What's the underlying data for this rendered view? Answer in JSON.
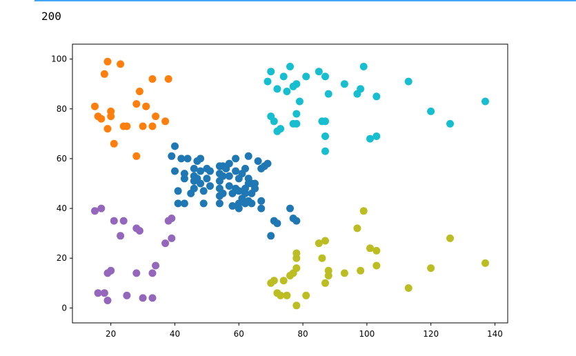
{
  "output": {
    "text": "200"
  },
  "chart_data": {
    "type": "scatter",
    "xlim": [
      8,
      144
    ],
    "ylim": [
      -6,
      106
    ],
    "xticks": [
      20,
      40,
      60,
      80,
      100,
      120,
      140
    ],
    "yticks": [
      0,
      20,
      40,
      60,
      80,
      100
    ],
    "grid": false,
    "clusters": [
      {
        "color": "#1f77b4",
        "points": [
          [
            39,
            61
          ],
          [
            40,
            65
          ],
          [
            40,
            55
          ],
          [
            41,
            47
          ],
          [
            42,
            60
          ],
          [
            43,
            52
          ],
          [
            43,
            54
          ],
          [
            44,
            60
          ],
          [
            45,
            46
          ],
          [
            46,
            48
          ],
          [
            46,
            51
          ],
          [
            46,
            56
          ],
          [
            46,
            53
          ],
          [
            47,
            59
          ],
          [
            47,
            52
          ],
          [
            48,
            60
          ],
          [
            48,
            55
          ],
          [
            48,
            50
          ],
          [
            49,
            47
          ],
          [
            49,
            42
          ],
          [
            50,
            56
          ],
          [
            50,
            52
          ],
          [
            51,
            49
          ],
          [
            51,
            55
          ],
          [
            54,
            57
          ],
          [
            54,
            51
          ],
          [
            54,
            54
          ],
          [
            54,
            48
          ],
          [
            54,
            45
          ],
          [
            54,
            42
          ],
          [
            55,
            57
          ],
          [
            55,
            53
          ],
          [
            55,
            46
          ],
          [
            56,
            56
          ],
          [
            57,
            58
          ],
          [
            57,
            53
          ],
          [
            57,
            49
          ],
          [
            58,
            46
          ],
          [
            58,
            41
          ],
          [
            59,
            55
          ],
          [
            59,
            48
          ],
          [
            59,
            60
          ],
          [
            60,
            52
          ],
          [
            60,
            42
          ],
          [
            60,
            47
          ],
          [
            60,
            40
          ],
          [
            61,
            54
          ],
          [
            61,
            44
          ],
          [
            62,
            56
          ],
          [
            62,
            48
          ],
          [
            62,
            46
          ],
          [
            62,
            42
          ],
          [
            63,
            52
          ],
          [
            63,
            50
          ],
          [
            63,
            61
          ],
          [
            63,
            43
          ],
          [
            64,
            46
          ],
          [
            64,
            50
          ],
          [
            64,
            42
          ],
          [
            65,
            48
          ],
          [
            65,
            50
          ],
          [
            66,
            59
          ],
          [
            67,
            56
          ],
          [
            68,
            57
          ],
          [
            69,
            58
          ],
          [
            67,
            43
          ],
          [
            67,
            40
          ],
          [
            71,
            35
          ],
          [
            72,
            34
          ],
          [
            76,
            40
          ],
          [
            77,
            36
          ],
          [
            78,
            35
          ],
          [
            70,
            29
          ],
          [
            41,
            42
          ],
          [
            43,
            42
          ]
        ]
      },
      {
        "color": "#ff7f0e",
        "points": [
          [
            15,
            81
          ],
          [
            16,
            77
          ],
          [
            17,
            76
          ],
          [
            18,
            94
          ],
          [
            19,
            99
          ],
          [
            19,
            72
          ],
          [
            20,
            79
          ],
          [
            20,
            77
          ],
          [
            21,
            66
          ],
          [
            23,
            98
          ],
          [
            24,
            73
          ],
          [
            25,
            73
          ],
          [
            28,
            61
          ],
          [
            28,
            82
          ],
          [
            29,
            87
          ],
          [
            30,
            73
          ],
          [
            31,
            81
          ],
          [
            33,
            92
          ],
          [
            33,
            73
          ],
          [
            34,
            77
          ],
          [
            37,
            75
          ],
          [
            38,
            92
          ]
        ]
      },
      {
        "color": "#17becf",
        "points": [
          [
            69,
            91
          ],
          [
            70,
            95
          ],
          [
            70,
            77
          ],
          [
            71,
            75
          ],
          [
            72,
            71
          ],
          [
            72,
            88
          ],
          [
            73,
            72
          ],
          [
            74,
            93
          ],
          [
            75,
            87
          ],
          [
            76,
            97
          ],
          [
            77,
            74
          ],
          [
            77,
            89
          ],
          [
            78,
            78
          ],
          [
            78,
            74
          ],
          [
            78,
            90
          ],
          [
            79,
            83
          ],
          [
            81,
            93
          ],
          [
            85,
            95
          ],
          [
            86,
            75
          ],
          [
            87,
            75
          ],
          [
            87,
            93
          ],
          [
            87,
            63
          ],
          [
            87,
            69
          ],
          [
            88,
            86
          ],
          [
            93,
            90
          ],
          [
            97,
            86
          ],
          [
            98,
            88
          ],
          [
            99,
            97
          ],
          [
            101,
            68
          ],
          [
            103,
            69
          ],
          [
            103,
            85
          ],
          [
            113,
            91
          ],
          [
            120,
            79
          ],
          [
            126,
            74
          ],
          [
            137,
            83
          ]
        ]
      },
      {
        "color": "#9467bd",
        "points": [
          [
            15,
            39
          ],
          [
            16,
            6
          ],
          [
            17,
            40
          ],
          [
            18,
            6
          ],
          [
            19,
            3
          ],
          [
            19,
            14
          ],
          [
            20,
            15
          ],
          [
            21,
            35
          ],
          [
            23,
            29
          ],
          [
            24,
            35
          ],
          [
            25,
            5
          ],
          [
            28,
            14
          ],
          [
            28,
            32
          ],
          [
            29,
            31
          ],
          [
            30,
            4
          ],
          [
            33,
            4
          ],
          [
            33,
            14
          ],
          [
            34,
            17
          ],
          [
            37,
            26
          ],
          [
            38,
            35
          ],
          [
            39,
            28
          ],
          [
            39,
            36
          ]
        ]
      },
      {
        "color": "#bcbd22",
        "points": [
          [
            70,
            10
          ],
          [
            71,
            11
          ],
          [
            72,
            6
          ],
          [
            73,
            5
          ],
          [
            74,
            11
          ],
          [
            75,
            5
          ],
          [
            76,
            13
          ],
          [
            77,
            14
          ],
          [
            78,
            20
          ],
          [
            78,
            16
          ],
          [
            78,
            22
          ],
          [
            78,
            1
          ],
          [
            81,
            5
          ],
          [
            85,
            26
          ],
          [
            86,
            20
          ],
          [
            87,
            10
          ],
          [
            87,
            27
          ],
          [
            88,
            13
          ],
          [
            88,
            15
          ],
          [
            93,
            14
          ],
          [
            97,
            32
          ],
          [
            98,
            15
          ],
          [
            99,
            39
          ],
          [
            101,
            24
          ],
          [
            103,
            23
          ],
          [
            103,
            17
          ],
          [
            113,
            8
          ],
          [
            120,
            16
          ],
          [
            126,
            28
          ],
          [
            137,
            18
          ]
        ]
      }
    ]
  }
}
